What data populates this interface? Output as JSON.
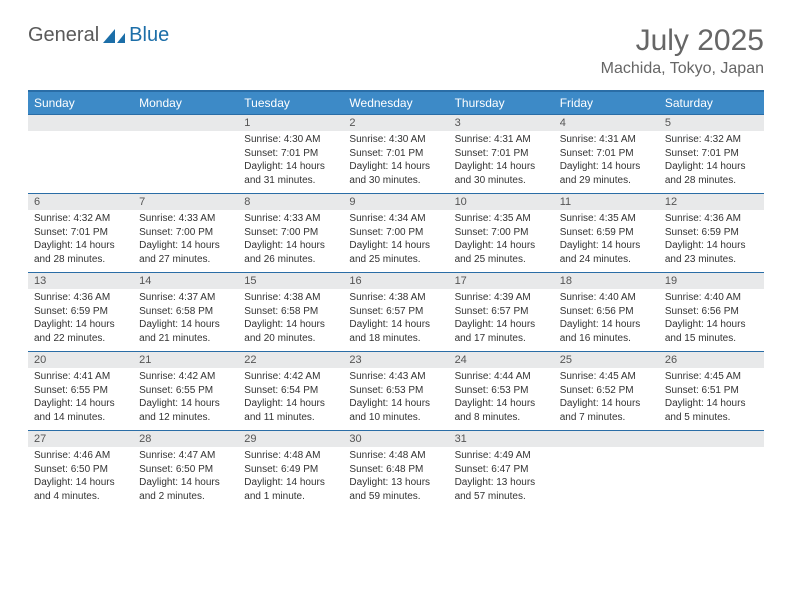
{
  "logo": {
    "word1": "General",
    "word2": "Blue"
  },
  "title": "July 2025",
  "location": "Machida, Tokyo, Japan",
  "colors": {
    "header_bg": "#3d8ac7",
    "border": "#2a6da6",
    "daynum_bg": "#e8e9ea",
    "text": "#333333",
    "muted": "#666666"
  },
  "daynames": [
    "Sunday",
    "Monday",
    "Tuesday",
    "Wednesday",
    "Thursday",
    "Friday",
    "Saturday"
  ],
  "weeks": [
    [
      {
        "blank": true
      },
      {
        "blank": true
      },
      {
        "n": "1",
        "sr": "Sunrise: 4:30 AM",
        "ss": "Sunset: 7:01 PM",
        "dl1": "Daylight: 14 hours",
        "dl2": "and 31 minutes."
      },
      {
        "n": "2",
        "sr": "Sunrise: 4:30 AM",
        "ss": "Sunset: 7:01 PM",
        "dl1": "Daylight: 14 hours",
        "dl2": "and 30 minutes."
      },
      {
        "n": "3",
        "sr": "Sunrise: 4:31 AM",
        "ss": "Sunset: 7:01 PM",
        "dl1": "Daylight: 14 hours",
        "dl2": "and 30 minutes."
      },
      {
        "n": "4",
        "sr": "Sunrise: 4:31 AM",
        "ss": "Sunset: 7:01 PM",
        "dl1": "Daylight: 14 hours",
        "dl2": "and 29 minutes."
      },
      {
        "n": "5",
        "sr": "Sunrise: 4:32 AM",
        "ss": "Sunset: 7:01 PM",
        "dl1": "Daylight: 14 hours",
        "dl2": "and 28 minutes."
      }
    ],
    [
      {
        "n": "6",
        "sr": "Sunrise: 4:32 AM",
        "ss": "Sunset: 7:01 PM",
        "dl1": "Daylight: 14 hours",
        "dl2": "and 28 minutes."
      },
      {
        "n": "7",
        "sr": "Sunrise: 4:33 AM",
        "ss": "Sunset: 7:00 PM",
        "dl1": "Daylight: 14 hours",
        "dl2": "and 27 minutes."
      },
      {
        "n": "8",
        "sr": "Sunrise: 4:33 AM",
        "ss": "Sunset: 7:00 PM",
        "dl1": "Daylight: 14 hours",
        "dl2": "and 26 minutes."
      },
      {
        "n": "9",
        "sr": "Sunrise: 4:34 AM",
        "ss": "Sunset: 7:00 PM",
        "dl1": "Daylight: 14 hours",
        "dl2": "and 25 minutes."
      },
      {
        "n": "10",
        "sr": "Sunrise: 4:35 AM",
        "ss": "Sunset: 7:00 PM",
        "dl1": "Daylight: 14 hours",
        "dl2": "and 25 minutes."
      },
      {
        "n": "11",
        "sr": "Sunrise: 4:35 AM",
        "ss": "Sunset: 6:59 PM",
        "dl1": "Daylight: 14 hours",
        "dl2": "and 24 minutes."
      },
      {
        "n": "12",
        "sr": "Sunrise: 4:36 AM",
        "ss": "Sunset: 6:59 PM",
        "dl1": "Daylight: 14 hours",
        "dl2": "and 23 minutes."
      }
    ],
    [
      {
        "n": "13",
        "sr": "Sunrise: 4:36 AM",
        "ss": "Sunset: 6:59 PM",
        "dl1": "Daylight: 14 hours",
        "dl2": "and 22 minutes."
      },
      {
        "n": "14",
        "sr": "Sunrise: 4:37 AM",
        "ss": "Sunset: 6:58 PM",
        "dl1": "Daylight: 14 hours",
        "dl2": "and 21 minutes."
      },
      {
        "n": "15",
        "sr": "Sunrise: 4:38 AM",
        "ss": "Sunset: 6:58 PM",
        "dl1": "Daylight: 14 hours",
        "dl2": "and 20 minutes."
      },
      {
        "n": "16",
        "sr": "Sunrise: 4:38 AM",
        "ss": "Sunset: 6:57 PM",
        "dl1": "Daylight: 14 hours",
        "dl2": "and 18 minutes."
      },
      {
        "n": "17",
        "sr": "Sunrise: 4:39 AM",
        "ss": "Sunset: 6:57 PM",
        "dl1": "Daylight: 14 hours",
        "dl2": "and 17 minutes."
      },
      {
        "n": "18",
        "sr": "Sunrise: 4:40 AM",
        "ss": "Sunset: 6:56 PM",
        "dl1": "Daylight: 14 hours",
        "dl2": "and 16 minutes."
      },
      {
        "n": "19",
        "sr": "Sunrise: 4:40 AM",
        "ss": "Sunset: 6:56 PM",
        "dl1": "Daylight: 14 hours",
        "dl2": "and 15 minutes."
      }
    ],
    [
      {
        "n": "20",
        "sr": "Sunrise: 4:41 AM",
        "ss": "Sunset: 6:55 PM",
        "dl1": "Daylight: 14 hours",
        "dl2": "and 14 minutes."
      },
      {
        "n": "21",
        "sr": "Sunrise: 4:42 AM",
        "ss": "Sunset: 6:55 PM",
        "dl1": "Daylight: 14 hours",
        "dl2": "and 12 minutes."
      },
      {
        "n": "22",
        "sr": "Sunrise: 4:42 AM",
        "ss": "Sunset: 6:54 PM",
        "dl1": "Daylight: 14 hours",
        "dl2": "and 11 minutes."
      },
      {
        "n": "23",
        "sr": "Sunrise: 4:43 AM",
        "ss": "Sunset: 6:53 PM",
        "dl1": "Daylight: 14 hours",
        "dl2": "and 10 minutes."
      },
      {
        "n": "24",
        "sr": "Sunrise: 4:44 AM",
        "ss": "Sunset: 6:53 PM",
        "dl1": "Daylight: 14 hours",
        "dl2": "and 8 minutes."
      },
      {
        "n": "25",
        "sr": "Sunrise: 4:45 AM",
        "ss": "Sunset: 6:52 PM",
        "dl1": "Daylight: 14 hours",
        "dl2": "and 7 minutes."
      },
      {
        "n": "26",
        "sr": "Sunrise: 4:45 AM",
        "ss": "Sunset: 6:51 PM",
        "dl1": "Daylight: 14 hours",
        "dl2": "and 5 minutes."
      }
    ],
    [
      {
        "n": "27",
        "sr": "Sunrise: 4:46 AM",
        "ss": "Sunset: 6:50 PM",
        "dl1": "Daylight: 14 hours",
        "dl2": "and 4 minutes."
      },
      {
        "n": "28",
        "sr": "Sunrise: 4:47 AM",
        "ss": "Sunset: 6:50 PM",
        "dl1": "Daylight: 14 hours",
        "dl2": "and 2 minutes."
      },
      {
        "n": "29",
        "sr": "Sunrise: 4:48 AM",
        "ss": "Sunset: 6:49 PM",
        "dl1": "Daylight: 14 hours",
        "dl2": "and 1 minute."
      },
      {
        "n": "30",
        "sr": "Sunrise: 4:48 AM",
        "ss": "Sunset: 6:48 PM",
        "dl1": "Daylight: 13 hours",
        "dl2": "and 59 minutes."
      },
      {
        "n": "31",
        "sr": "Sunrise: 4:49 AM",
        "ss": "Sunset: 6:47 PM",
        "dl1": "Daylight: 13 hours",
        "dl2": "and 57 minutes."
      },
      {
        "blank": true
      },
      {
        "blank": true
      }
    ]
  ]
}
